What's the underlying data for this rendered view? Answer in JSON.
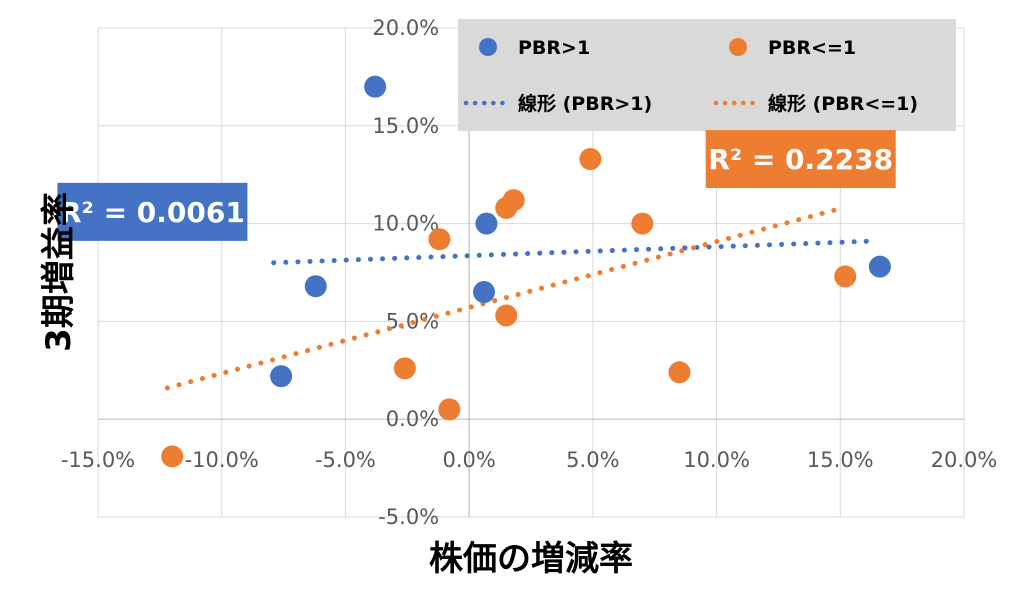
{
  "chart_data": {
    "type": "scatter",
    "xlabel": "株価の増減率",
    "ylabel": "3期増益率",
    "xlim": [
      -15,
      20
    ],
    "ylim": [
      -5,
      20
    ],
    "x_ticks": [
      "-15.0%",
      "-10.0%",
      "-5.0%",
      "0.0%",
      "5.0%",
      "10.0%",
      "15.0%",
      "20.0%"
    ],
    "y_ticks": [
      "-5.0%",
      "0.0%",
      "5.0%",
      "10.0%",
      "15.0%",
      "20.0%"
    ],
    "grid": true,
    "legend_position": "top-right",
    "series": [
      {
        "name": "PBR>1",
        "color": "#4472C4",
        "points": [
          {
            "x": -3.8,
            "y": 17.0
          },
          {
            "x": -6.2,
            "y": 6.8
          },
          {
            "x": -7.6,
            "y": 2.2
          },
          {
            "x": 0.7,
            "y": 10.0
          },
          {
            "x": 0.6,
            "y": 6.5
          },
          {
            "x": 16.6,
            "y": 7.8
          }
        ]
      },
      {
        "name": "PBR<=1",
        "color": "#ED7D31",
        "points": [
          {
            "x": 4.9,
            "y": 13.3
          },
          {
            "x": 1.8,
            "y": 11.2
          },
          {
            "x": 1.5,
            "y": 10.8
          },
          {
            "x": 7.0,
            "y": 10.0
          },
          {
            "x": -1.2,
            "y": 9.2
          },
          {
            "x": 15.2,
            "y": 7.3
          },
          {
            "x": 1.5,
            "y": 5.3
          },
          {
            "x": -2.6,
            "y": 2.6
          },
          {
            "x": 8.5,
            "y": 2.4
          },
          {
            "x": -0.8,
            "y": 0.5
          },
          {
            "x": -12.0,
            "y": -1.9
          }
        ]
      }
    ],
    "trendlines": [
      {
        "name": "線形 (PBR>1)",
        "color": "#4472C4",
        "x": [
          -7.9,
          16.2
        ],
        "y": [
          8.0,
          9.1
        ],
        "r2_label": "R² = 0.0061",
        "r2_anchor": {
          "x": -12.8,
          "y": 10.6
        }
      },
      {
        "name": "線形 (PBR<=1)",
        "color": "#ED7D31",
        "x": [
          -12.2,
          15.1
        ],
        "y": [
          1.6,
          10.8
        ],
        "r2_label": "R² = 0.2238",
        "r2_anchor": {
          "x": 13.4,
          "y": 13.3
        }
      }
    ]
  }
}
